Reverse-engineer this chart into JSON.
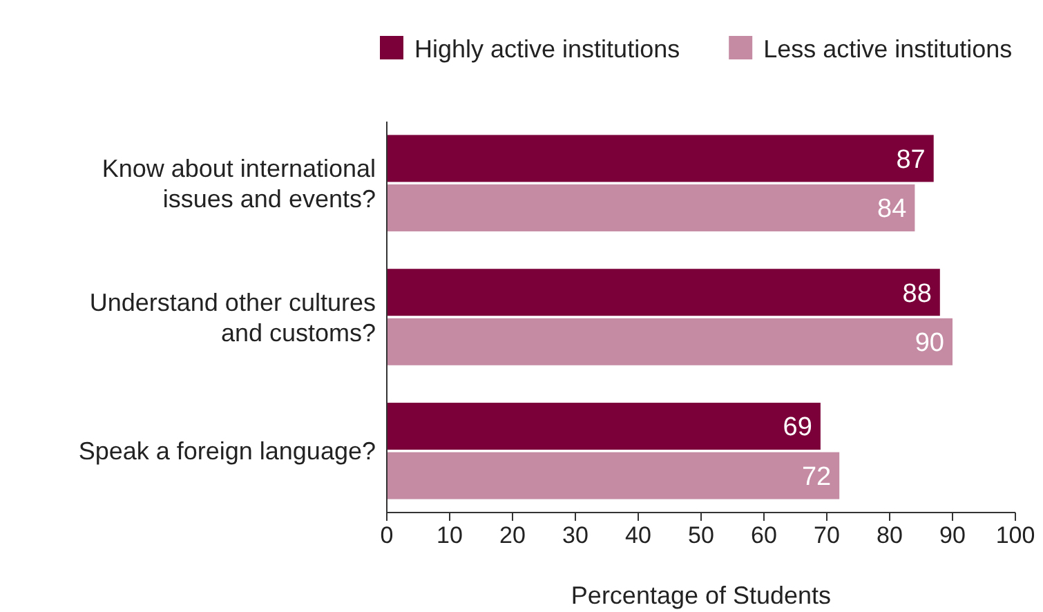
{
  "chart_data": {
    "type": "bar",
    "orientation": "horizontal",
    "categories": [
      "Know about international issues and events?",
      "Understand other cultures and customs?",
      "Speak a foreign language?"
    ],
    "series": [
      {
        "name": "Highly active institutions",
        "color": "#7b003a",
        "values": [
          87,
          88,
          69
        ]
      },
      {
        "name": "Less active institutions",
        "color": "#c48ba3",
        "values": [
          84,
          90,
          72
        ]
      }
    ],
    "xlim": [
      0,
      100
    ],
    "xticks": [
      0,
      10,
      20,
      30,
      40,
      50,
      60,
      70,
      80,
      90,
      100
    ],
    "xlabel": "Percentage of Students",
    "data_labels": true,
    "legend": "top right",
    "grid": false
  }
}
